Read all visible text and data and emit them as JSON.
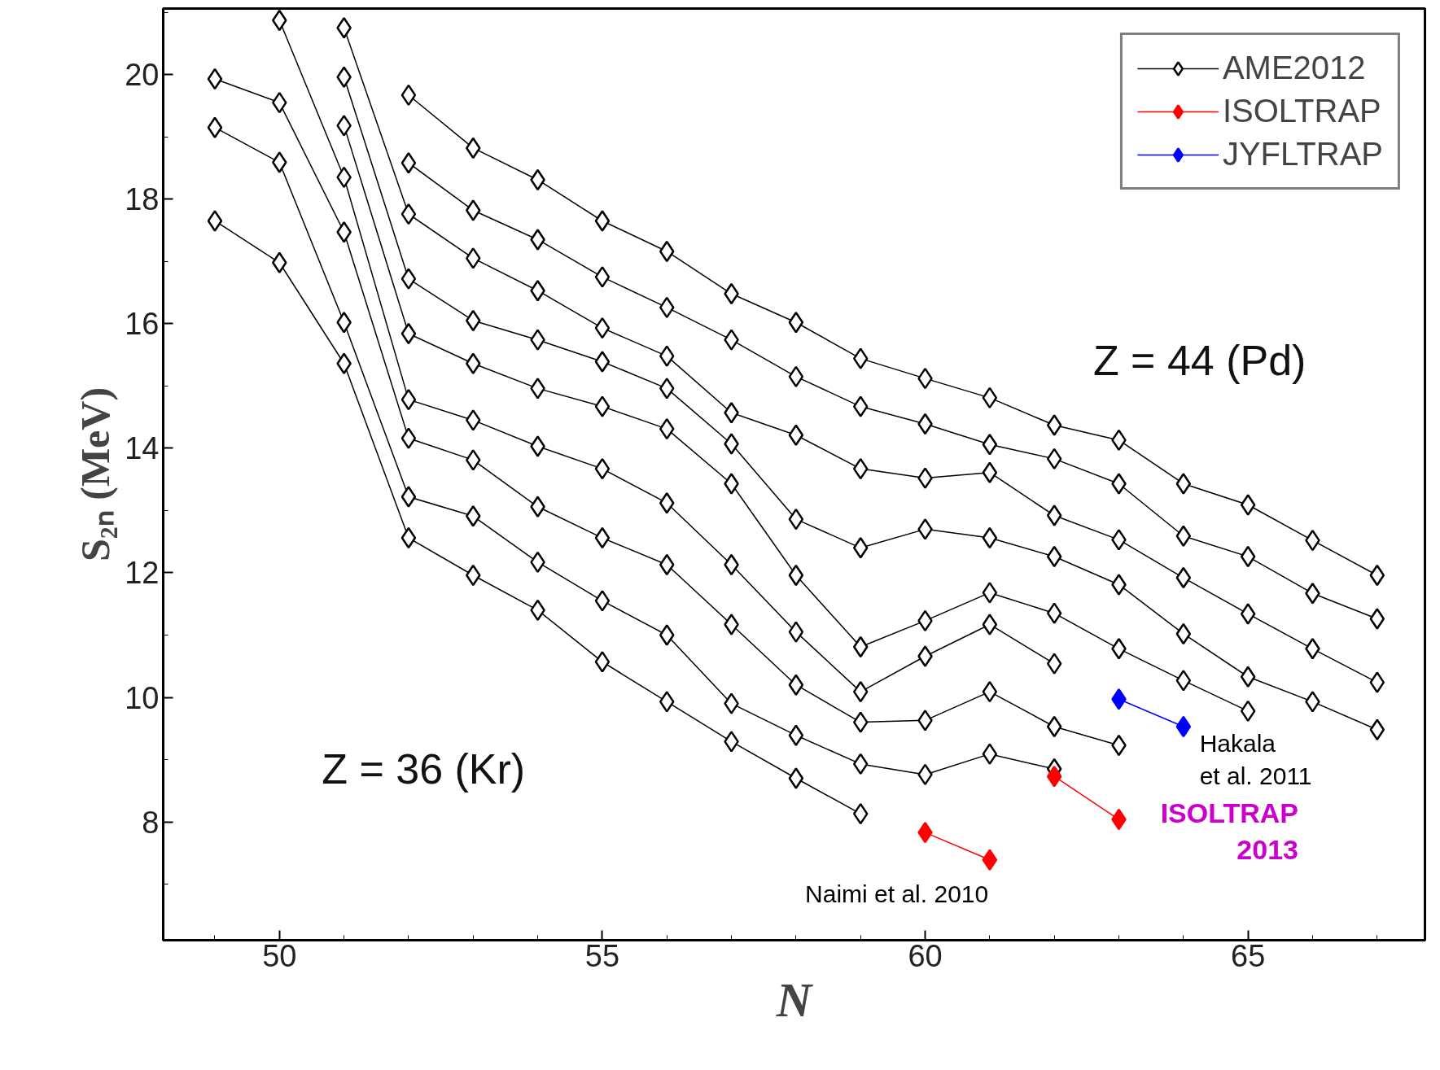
{
  "chart_data": {
    "type": "line",
    "xlabel": "N",
    "ylabel": "S₂ₙ (MeV)",
    "xlim": [
      48.2,
      67.74
    ],
    "ylim": [
      6.1,
      21.06
    ],
    "xticks": [
      50,
      55,
      60,
      65
    ],
    "yticks": [
      8,
      10,
      12,
      14,
      16,
      18,
      20
    ],
    "grid": false,
    "legend": "top right",
    "marker": "diamond",
    "line_style": "solid",
    "series": [
      {
        "name": "AME2012",
        "color": "#000000",
        "x": [
          49,
          50,
          51,
          52,
          53,
          54,
          55,
          56,
          57,
          58,
          59
        ],
        "values": [
          17.65,
          16.98,
          15.36,
          12.56,
          11.96,
          11.4,
          10.57,
          9.93,
          9.29,
          8.7,
          8.13
        ]
      },
      {
        "color": "#000000",
        "x": [
          49,
          50,
          51,
          52,
          53,
          54,
          55,
          56,
          57,
          58,
          59,
          60,
          61,
          62
        ],
        "values": [
          19.15,
          18.59,
          16.02,
          13.22,
          12.91,
          12.17,
          11.55,
          11.0,
          9.9,
          9.39,
          8.93,
          8.76,
          9.09,
          8.85
        ]
      },
      {
        "color": "#000000",
        "x": [
          49,
          50,
          51,
          52,
          53,
          54,
          55,
          56,
          57,
          58,
          59,
          60,
          61,
          62,
          63
        ],
        "values": [
          19.93,
          19.55,
          17.47,
          14.16,
          13.81,
          13.06,
          12.56,
          12.13,
          11.17,
          10.2,
          9.6,
          9.63,
          10.09,
          9.53,
          9.23
        ]
      },
      {
        "color": "#000000",
        "x": [
          50,
          51,
          52,
          53,
          54,
          55,
          56,
          57,
          58,
          59,
          60,
          61,
          62
        ],
        "values": [
          20.87,
          18.35,
          14.78,
          14.45,
          14.03,
          13.67,
          13.12,
          12.13,
          11.05,
          10.09,
          10.66,
          11.17,
          10.54
        ]
      },
      {
        "color": "#000000",
        "x": [
          51,
          52,
          53,
          54,
          55,
          56,
          57,
          58,
          59,
          60,
          61,
          62,
          63,
          64,
          65
        ],
        "values": [
          19.18,
          15.84,
          15.36,
          14.96,
          14.67,
          14.31,
          13.43,
          11.96,
          10.81,
          11.23,
          11.68,
          11.35,
          10.78,
          10.27,
          9.78
        ]
      },
      {
        "color": "#000000",
        "x": [
          51,
          52,
          53,
          54,
          55,
          56,
          57,
          58,
          59,
          60,
          61,
          62,
          63,
          64,
          65,
          66,
          67
        ],
        "values": [
          19.96,
          16.72,
          16.05,
          15.74,
          15.39,
          14.96,
          14.07,
          12.86,
          12.4,
          12.7,
          12.56,
          12.26,
          11.81,
          11.02,
          10.33,
          9.93,
          9.48
        ]
      },
      {
        "color": "#000000",
        "x": [
          51,
          52,
          53,
          54,
          55,
          56,
          57,
          58,
          59,
          60,
          61,
          62,
          63,
          64,
          65,
          66,
          67
        ],
        "values": [
          20.75,
          17.76,
          17.05,
          16.53,
          15.93,
          15.48,
          14.57,
          14.21,
          13.67,
          13.52,
          13.61,
          12.92,
          12.53,
          11.92,
          11.34,
          10.78,
          10.24
        ]
      },
      {
        "color": "#000000",
        "x": [
          52,
          53,
          54,
          55,
          56,
          57,
          58,
          59,
          60,
          61,
          62,
          63,
          64,
          65,
          66,
          67
        ],
        "values": [
          18.58,
          17.82,
          17.35,
          16.75,
          16.26,
          15.74,
          15.15,
          14.67,
          14.39,
          14.06,
          13.83,
          13.43,
          12.59,
          12.26,
          11.67,
          11.26
        ]
      },
      {
        "color": "#000000",
        "x": [
          52,
          53,
          54,
          55,
          56,
          57,
          58,
          59,
          60,
          61,
          62,
          63,
          64,
          65,
          66,
          67
        ],
        "values": [
          19.67,
          18.82,
          18.31,
          17.65,
          17.16,
          16.48,
          16.02,
          15.44,
          15.12,
          14.81,
          14.37,
          14.13,
          13.43,
          13.09,
          12.52,
          11.96
        ]
      },
      {
        "name": "ISOLTRAP",
        "color": "#ff0000",
        "x": [
          60,
          61
        ],
        "values": [
          7.83,
          7.39
        ]
      },
      {
        "color": "#ff0000",
        "x": [
          62,
          63
        ],
        "values": [
          8.73,
          8.04
        ]
      },
      {
        "name": "JYFLTRAP",
        "color": "#0000ff",
        "x": [
          63,
          64
        ],
        "values": [
          9.97,
          9.53
        ]
      }
    ],
    "annotations": [
      "Z = 36 (Kr)",
      "Z = 44 (Pd)",
      "Naimi et al. 2010",
      "Hakala\net al. 2011",
      "ISOLTRAP\n2013"
    ]
  }
}
